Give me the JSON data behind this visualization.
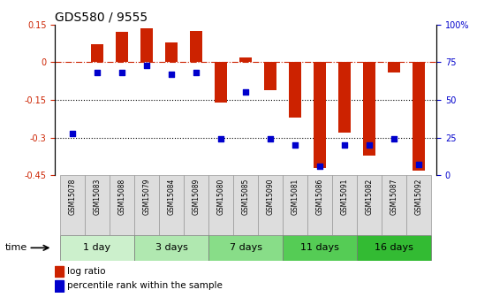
{
  "title": "GDS580 / 9555",
  "samples": [
    "GSM15078",
    "GSM15083",
    "GSM15088",
    "GSM15079",
    "GSM15084",
    "GSM15089",
    "GSM15080",
    "GSM15085",
    "GSM15090",
    "GSM15081",
    "GSM15086",
    "GSM15091",
    "GSM15082",
    "GSM15087",
    "GSM15092"
  ],
  "log_ratio": [
    0.0,
    0.07,
    0.12,
    0.135,
    0.08,
    0.125,
    -0.16,
    0.02,
    -0.11,
    -0.22,
    -0.42,
    -0.28,
    -0.37,
    -0.04,
    -0.43
  ],
  "percentile": [
    28,
    68,
    68,
    73,
    67,
    68,
    24,
    55,
    24,
    20,
    6,
    20,
    20,
    24,
    7
  ],
  "ylim_left": [
    -0.45,
    0.15
  ],
  "ylim_right": [
    0,
    100
  ],
  "yticks_left": [
    0.15,
    0.0,
    -0.15,
    -0.3,
    -0.45
  ],
  "yticks_right": [
    100,
    75,
    50,
    25,
    0
  ],
  "time_groups": [
    {
      "label": "1 day",
      "start": 0,
      "end": 2,
      "color": "#ccf0cc"
    },
    {
      "label": "3 days",
      "start": 3,
      "end": 5,
      "color": "#b0e8b0"
    },
    {
      "label": "7 days",
      "start": 6,
      "end": 8,
      "color": "#88dd88"
    },
    {
      "label": "11 days",
      "start": 9,
      "end": 11,
      "color": "#55cc55"
    },
    {
      "label": "16 days",
      "start": 12,
      "end": 14,
      "color": "#33bb33"
    }
  ],
  "bar_color": "#cc2200",
  "scatter_color": "#0000cc",
  "dashed_line_color": "#cc2200",
  "dotted_line_color": "#000000",
  "bar_width": 0.5,
  "scatter_size": 22,
  "title_fontsize": 10,
  "tick_fontsize": 7,
  "sample_fontsize": 5.5,
  "group_fontsize": 8,
  "legend_fontsize": 7.5
}
